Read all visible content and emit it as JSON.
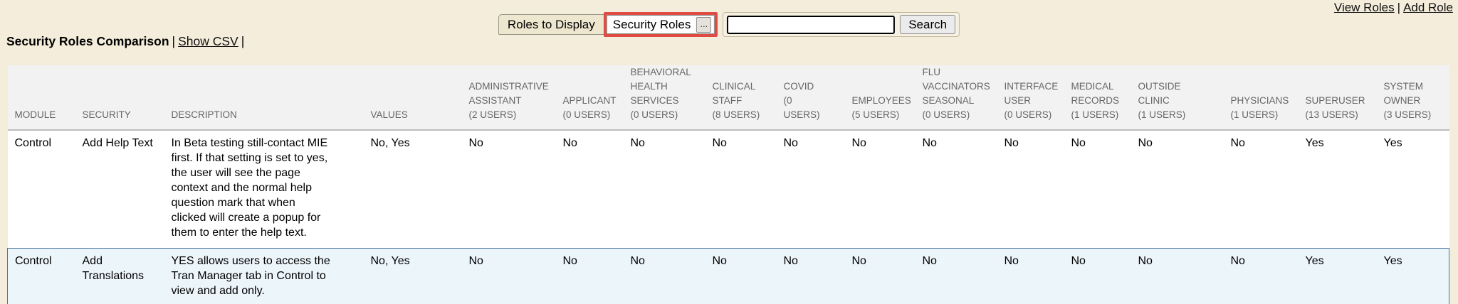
{
  "colors": {
    "page_bg": "#F4EDDB",
    "table_header_bg": "#F2F2F2",
    "table_header_text": "#666666",
    "highlight_row_bg": "#ECF5FA",
    "highlight_row_border": "#47789F",
    "picker_highlight_red": "#DF4C44"
  },
  "top_links": {
    "view_roles": "View Roles",
    "separator": "|",
    "add_role": "Add Role"
  },
  "toolbar": {
    "roles_to_display_label": "Roles to Display",
    "roles_picker_value": "Security Roles",
    "ellipsis_button": "...",
    "search_value": "",
    "search_button": "Search"
  },
  "heading": {
    "title": "Security Roles Comparison",
    "separator": "|",
    "show_csv_link": "Show CSV",
    "trailing_separator": "|"
  },
  "table": {
    "base_headers": [
      {
        "key": "module",
        "label": "MODULE"
      },
      {
        "key": "security",
        "label": "SECURITY"
      },
      {
        "key": "description",
        "label": "DESCRIPTION"
      },
      {
        "key": "values",
        "label": "VALUES"
      }
    ],
    "role_headers": [
      {
        "name": "administrative-assistant",
        "label": "ADMINISTRATIVE\nASSISTANT\n(2 USERS)"
      },
      {
        "name": "applicant",
        "label": "APPLICANT\n(0 USERS)"
      },
      {
        "name": "behavioral-health-services",
        "label": "BEHAVIORAL\nHEALTH\nSERVICES\n(0 USERS)"
      },
      {
        "name": "clinical-staff",
        "label": "CLINICAL\nSTAFF\n(8 USERS)"
      },
      {
        "name": "covid",
        "label": "COVID\n(0\nUSERS)"
      },
      {
        "name": "employees",
        "label": "EMPLOYEES\n(5 USERS)"
      },
      {
        "name": "flu-vaccinators-seasonal",
        "label": "FLU\nVACCINATORS\nSEASONAL\n(0 USERS)"
      },
      {
        "name": "interface-user",
        "label": "INTERFACE\nUSER\n(0 USERS)"
      },
      {
        "name": "medical-records",
        "label": "MEDICAL\nRECORDS\n(1 USERS)"
      },
      {
        "name": "outside-clinic",
        "label": "OUTSIDE\nCLINIC\n(1 USERS)"
      },
      {
        "name": "physicians",
        "label": "PHYSICIANS\n(1 USERS)"
      },
      {
        "name": "superuser",
        "label": "SUPERUSER\n(13 USERS)"
      },
      {
        "name": "system-owner",
        "label": "SYSTEM\nOWNER\n(3 USERS)"
      }
    ],
    "rows": [
      {
        "module": "Control",
        "security": "Add Help Text",
        "description": "In Beta testing still-contact MIE\nfirst. If that setting is set to yes,\nthe user will see the page\ncontext and the normal help\nquestion mark that when\nclicked will create a popup for\nthem to enter the help text.",
        "values": "No, Yes",
        "role_values": [
          "No",
          "No",
          "No",
          "No",
          "No",
          "No",
          "No",
          "No",
          "No",
          "No",
          "No",
          "Yes",
          "Yes"
        ],
        "highlighted": false
      },
      {
        "module": "Control",
        "security": "Add\nTranslations",
        "description": "YES allows users to access the\nTran Manager tab in Control to\nview and add only.",
        "values": "No, Yes",
        "role_values": [
          "No",
          "No",
          "No",
          "No",
          "No",
          "No",
          "No",
          "No",
          "No",
          "No",
          "No",
          "Yes",
          "Yes"
        ],
        "highlighted": true
      }
    ]
  }
}
